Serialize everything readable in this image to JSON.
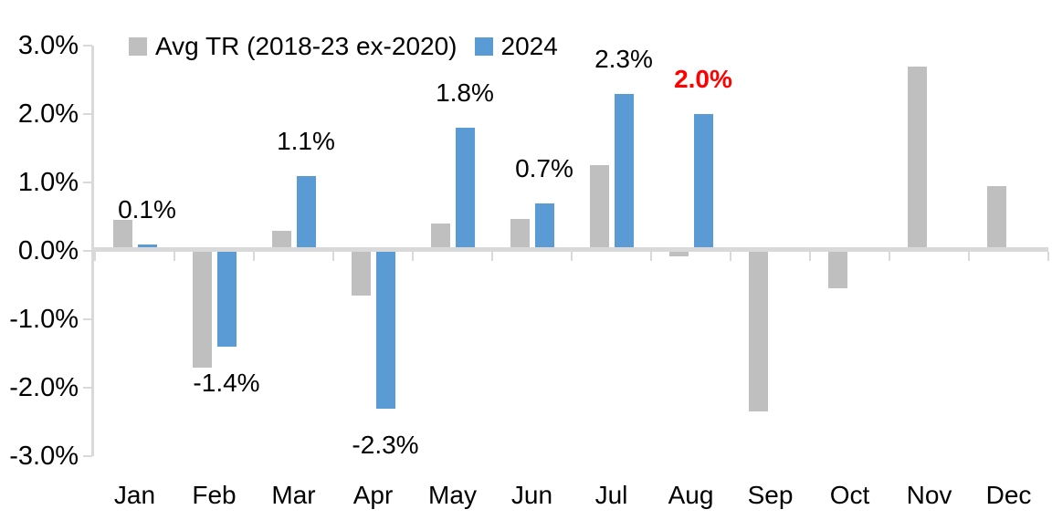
{
  "chart_data": {
    "type": "bar",
    "title": "",
    "xlabel": "",
    "ylabel": "",
    "categories": [
      "Jan",
      "Feb",
      "Mar",
      "Apr",
      "May",
      "Jun",
      "Jul",
      "Aug",
      "Sep",
      "Oct",
      "Nov",
      "Dec"
    ],
    "series": [
      {
        "name": "Avg TR (2018-23 ex-2020)",
        "color": "#bfbfbf",
        "values": [
          0.45,
          -1.7,
          0.3,
          -0.65,
          0.4,
          0.47,
          1.25,
          -0.08,
          -2.35,
          -0.55,
          2.7,
          0.95
        ]
      },
      {
        "name": "2024",
        "color": "#5b9bd5",
        "values": [
          0.1,
          -1.4,
          1.1,
          -2.3,
          1.8,
          0.7,
          2.3,
          2.0,
          null,
          null,
          null,
          null
        ]
      }
    ],
    "data_labels": {
      "series": "2024",
      "items": [
        {
          "index": 0,
          "text": "0.1%"
        },
        {
          "index": 1,
          "text": "-1.4%"
        },
        {
          "index": 2,
          "text": "1.1%"
        },
        {
          "index": 3,
          "text": "-2.3%"
        },
        {
          "index": 4,
          "text": "1.8%"
        },
        {
          "index": 5,
          "text": "0.7%"
        },
        {
          "index": 6,
          "text": "2.3%"
        },
        {
          "index": 7,
          "text": "2.0%",
          "color": "#ff0000",
          "bold": true
        }
      ]
    },
    "yticks": [
      {
        "label": "3.0%",
        "value": 3
      },
      {
        "label": "2.0%",
        "value": 2
      },
      {
        "label": "1.0%",
        "value": 1
      },
      {
        "label": "0.0%",
        "value": 0
      },
      {
        "label": "-1.0%",
        "value": -1
      },
      {
        "label": "-2.0%",
        "value": -2
      },
      {
        "label": "-3.0%",
        "value": -3
      }
    ],
    "ylim": [
      -3,
      3
    ],
    "grid": false,
    "legend_position": "top",
    "axis_color": "#d9d9d9",
    "text_color": "#000000"
  }
}
